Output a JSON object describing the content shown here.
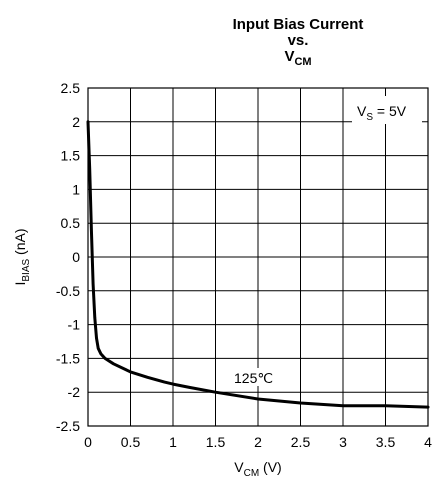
{
  "chart_data": {
    "type": "line",
    "title": {
      "line1": "Input Bias Current",
      "line2": "vs.",
      "line3_main": "V",
      "line3_sub": "CM"
    },
    "xlabel": {
      "main": "V",
      "sub": "CM",
      "suffix": " (V)"
    },
    "ylabel": {
      "main": "I",
      "sub": "BIAS",
      "suffix": " (nA)"
    },
    "xlim": [
      0,
      4
    ],
    "ylim": [
      -2.5,
      2.5
    ],
    "x_ticks": [
      "0",
      "0.5",
      "1",
      "1.5",
      "2",
      "2.5",
      "3",
      "3.5",
      "4"
    ],
    "y_ticks": [
      "2.5",
      "2",
      "1.5",
      "1",
      "0.5",
      "0",
      "-0.5",
      "-1",
      "-1.5",
      "-2",
      "-2.5"
    ],
    "grid": true,
    "annotations": {
      "supply": {
        "main": "V",
        "sub": "S",
        "suffix": " = 5V"
      },
      "temperature": "125℃"
    },
    "series": [
      {
        "label": "125℃",
        "x": [
          0.0,
          0.02,
          0.04,
          0.06,
          0.08,
          0.1,
          0.12,
          0.15,
          0.2,
          0.3,
          0.5,
          0.7,
          0.9,
          1.0,
          1.2,
          1.5,
          2.0,
          2.5,
          3.0,
          3.5,
          4.0
        ],
        "y": [
          2.0,
          1.3,
          0.4,
          -0.4,
          -0.9,
          -1.2,
          -1.35,
          -1.43,
          -1.5,
          -1.58,
          -1.7,
          -1.78,
          -1.85,
          -1.88,
          -1.93,
          -2.0,
          -2.1,
          -2.16,
          -2.2,
          -2.2,
          -2.22
        ]
      }
    ]
  }
}
